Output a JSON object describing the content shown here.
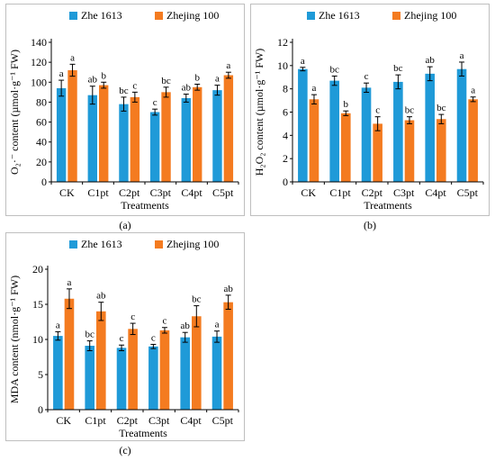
{
  "chart_data": [
    {
      "type": "bar",
      "panel_label": "(a)",
      "title": "",
      "xlabel": "Treatments",
      "ylabel": "O₂·⁻ content (µmol·g⁻¹ FW)",
      "ylim": [
        0,
        140
      ],
      "yticks": [
        0,
        20,
        40,
        60,
        80,
        100,
        120,
        140
      ],
      "grid": false,
      "legend_position": "top",
      "categories": [
        "CK",
        "C1pt",
        "C2pt",
        "C3pt",
        "C4pt",
        "C5pt"
      ],
      "series": [
        {
          "name": "Zhe 1613",
          "color": "#1f9ad8",
          "values": [
            94,
            87,
            78,
            70,
            84,
            92
          ],
          "errors": [
            8,
            9,
            7,
            3,
            4,
            5
          ],
          "letters": [
            "a",
            "ab",
            "bc",
            "c",
            "ab",
            "a"
          ]
        },
        {
          "name": "Zhejing 100",
          "color": "#f47b20",
          "values": [
            112,
            97,
            85,
            90,
            95,
            107
          ],
          "errors": [
            6,
            3,
            5,
            5,
            3,
            3
          ],
          "letters": [
            "a",
            "b",
            "c",
            "bc",
            "b",
            "a"
          ]
        }
      ]
    },
    {
      "type": "bar",
      "panel_label": "(b)",
      "title": "",
      "xlabel": "Treatments",
      "ylabel": "H₂O₂ content (µmol·g⁻¹ FW)",
      "ylim": [
        0,
        12
      ],
      "yticks": [
        0,
        2,
        4,
        6,
        8,
        10,
        12
      ],
      "grid": false,
      "legend_position": "top",
      "categories": [
        "CK",
        "C1pt",
        "C2pt",
        "C3pt",
        "C4pt",
        "C5pt"
      ],
      "series": [
        {
          "name": "Zhe 1613",
          "color": "#1f9ad8",
          "values": [
            9.7,
            8.7,
            8.1,
            8.6,
            9.3,
            9.7
          ],
          "errors": [
            0.15,
            0.4,
            0.4,
            0.6,
            0.6,
            0.6
          ],
          "letters": [
            "a",
            "bc",
            "c",
            "bc",
            "ab",
            "a"
          ]
        },
        {
          "name": "Zhejing 100",
          "color": "#f47b20",
          "values": [
            7.1,
            5.9,
            5.0,
            5.3,
            5.4,
            7.1
          ],
          "errors": [
            0.4,
            0.2,
            0.6,
            0.3,
            0.4,
            0.2
          ],
          "letters": [
            "a",
            "b",
            "c",
            "bc",
            "bc",
            "a"
          ]
        }
      ]
    },
    {
      "type": "bar",
      "panel_label": "(c)",
      "title": "",
      "xlabel": "Treatments",
      "ylabel": "MDA content (nmol·g⁻¹ FW)",
      "ylim": [
        0,
        20
      ],
      "yticks": [
        0,
        5,
        10,
        15,
        20
      ],
      "grid": false,
      "legend_position": "top",
      "categories": [
        "CK",
        "C1pt",
        "C2pt",
        "C3pt",
        "C4pt",
        "C5pt"
      ],
      "series": [
        {
          "name": "Zhe 1613",
          "color": "#1f9ad8",
          "values": [
            10.5,
            9.1,
            8.8,
            9.0,
            10.3,
            10.4
          ],
          "errors": [
            0.6,
            0.7,
            0.4,
            0.3,
            0.7,
            0.8
          ],
          "letters": [
            "a",
            "bc",
            "c",
            "c",
            "ab",
            "a"
          ]
        },
        {
          "name": "Zhejing 100",
          "color": "#f47b20",
          "values": [
            15.8,
            14.0,
            11.5,
            11.3,
            13.3,
            15.3
          ],
          "errors": [
            1.4,
            1.3,
            0.8,
            0.4,
            1.5,
            1.0
          ],
          "letters": [
            "a",
            "ab",
            "c",
            "c",
            "bc",
            "ab"
          ]
        }
      ]
    }
  ]
}
